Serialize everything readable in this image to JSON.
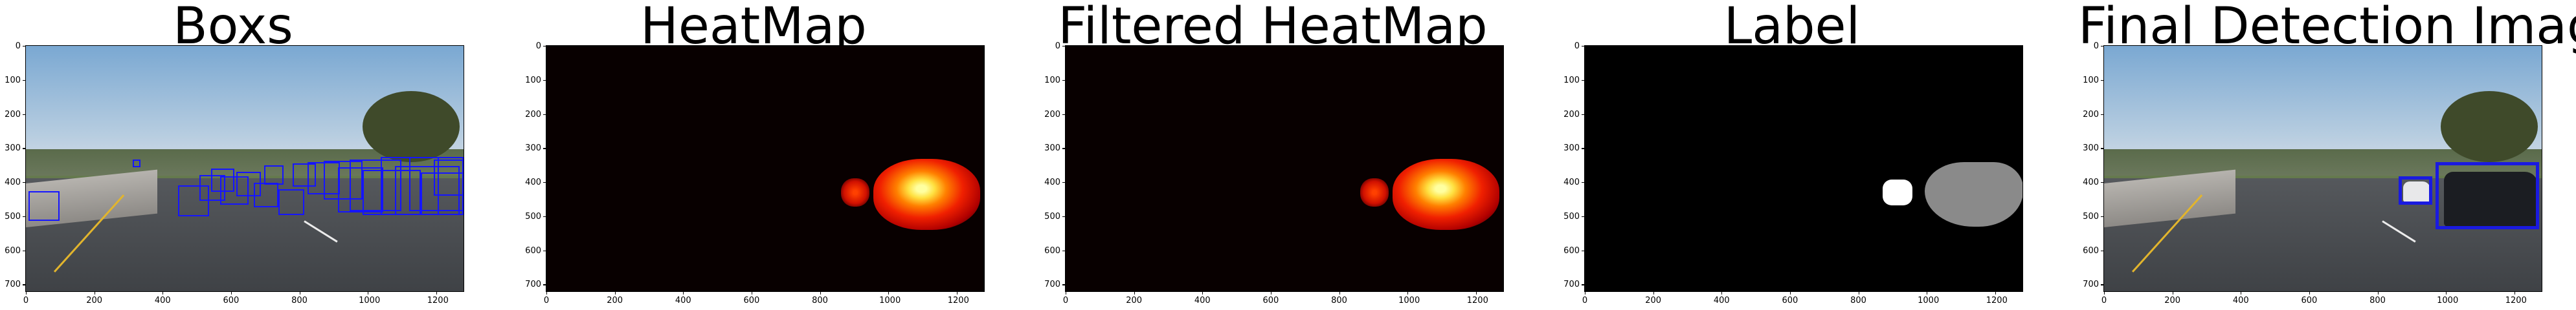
{
  "panels": [
    {
      "title": "Boxs"
    },
    {
      "title": "HeatMap"
    },
    {
      "title": "Filtered HeatMap"
    },
    {
      "title": "Label"
    },
    {
      "title": "Final Detection Image"
    }
  ],
  "axes": {
    "y_ticks": [
      "0",
      "100",
      "200",
      "300",
      "400",
      "500",
      "600",
      "700"
    ],
    "x_ticks": [
      "0",
      "200",
      "400",
      "600",
      "800",
      "1000",
      "1200"
    ]
  },
  "colors": {
    "box": "#1515ff",
    "heat_hot": "#ffff80",
    "heat_mid": "#ff3000",
    "heat_low": "#a00000",
    "label_1": "#ffffff",
    "label_2": "#808080"
  }
}
